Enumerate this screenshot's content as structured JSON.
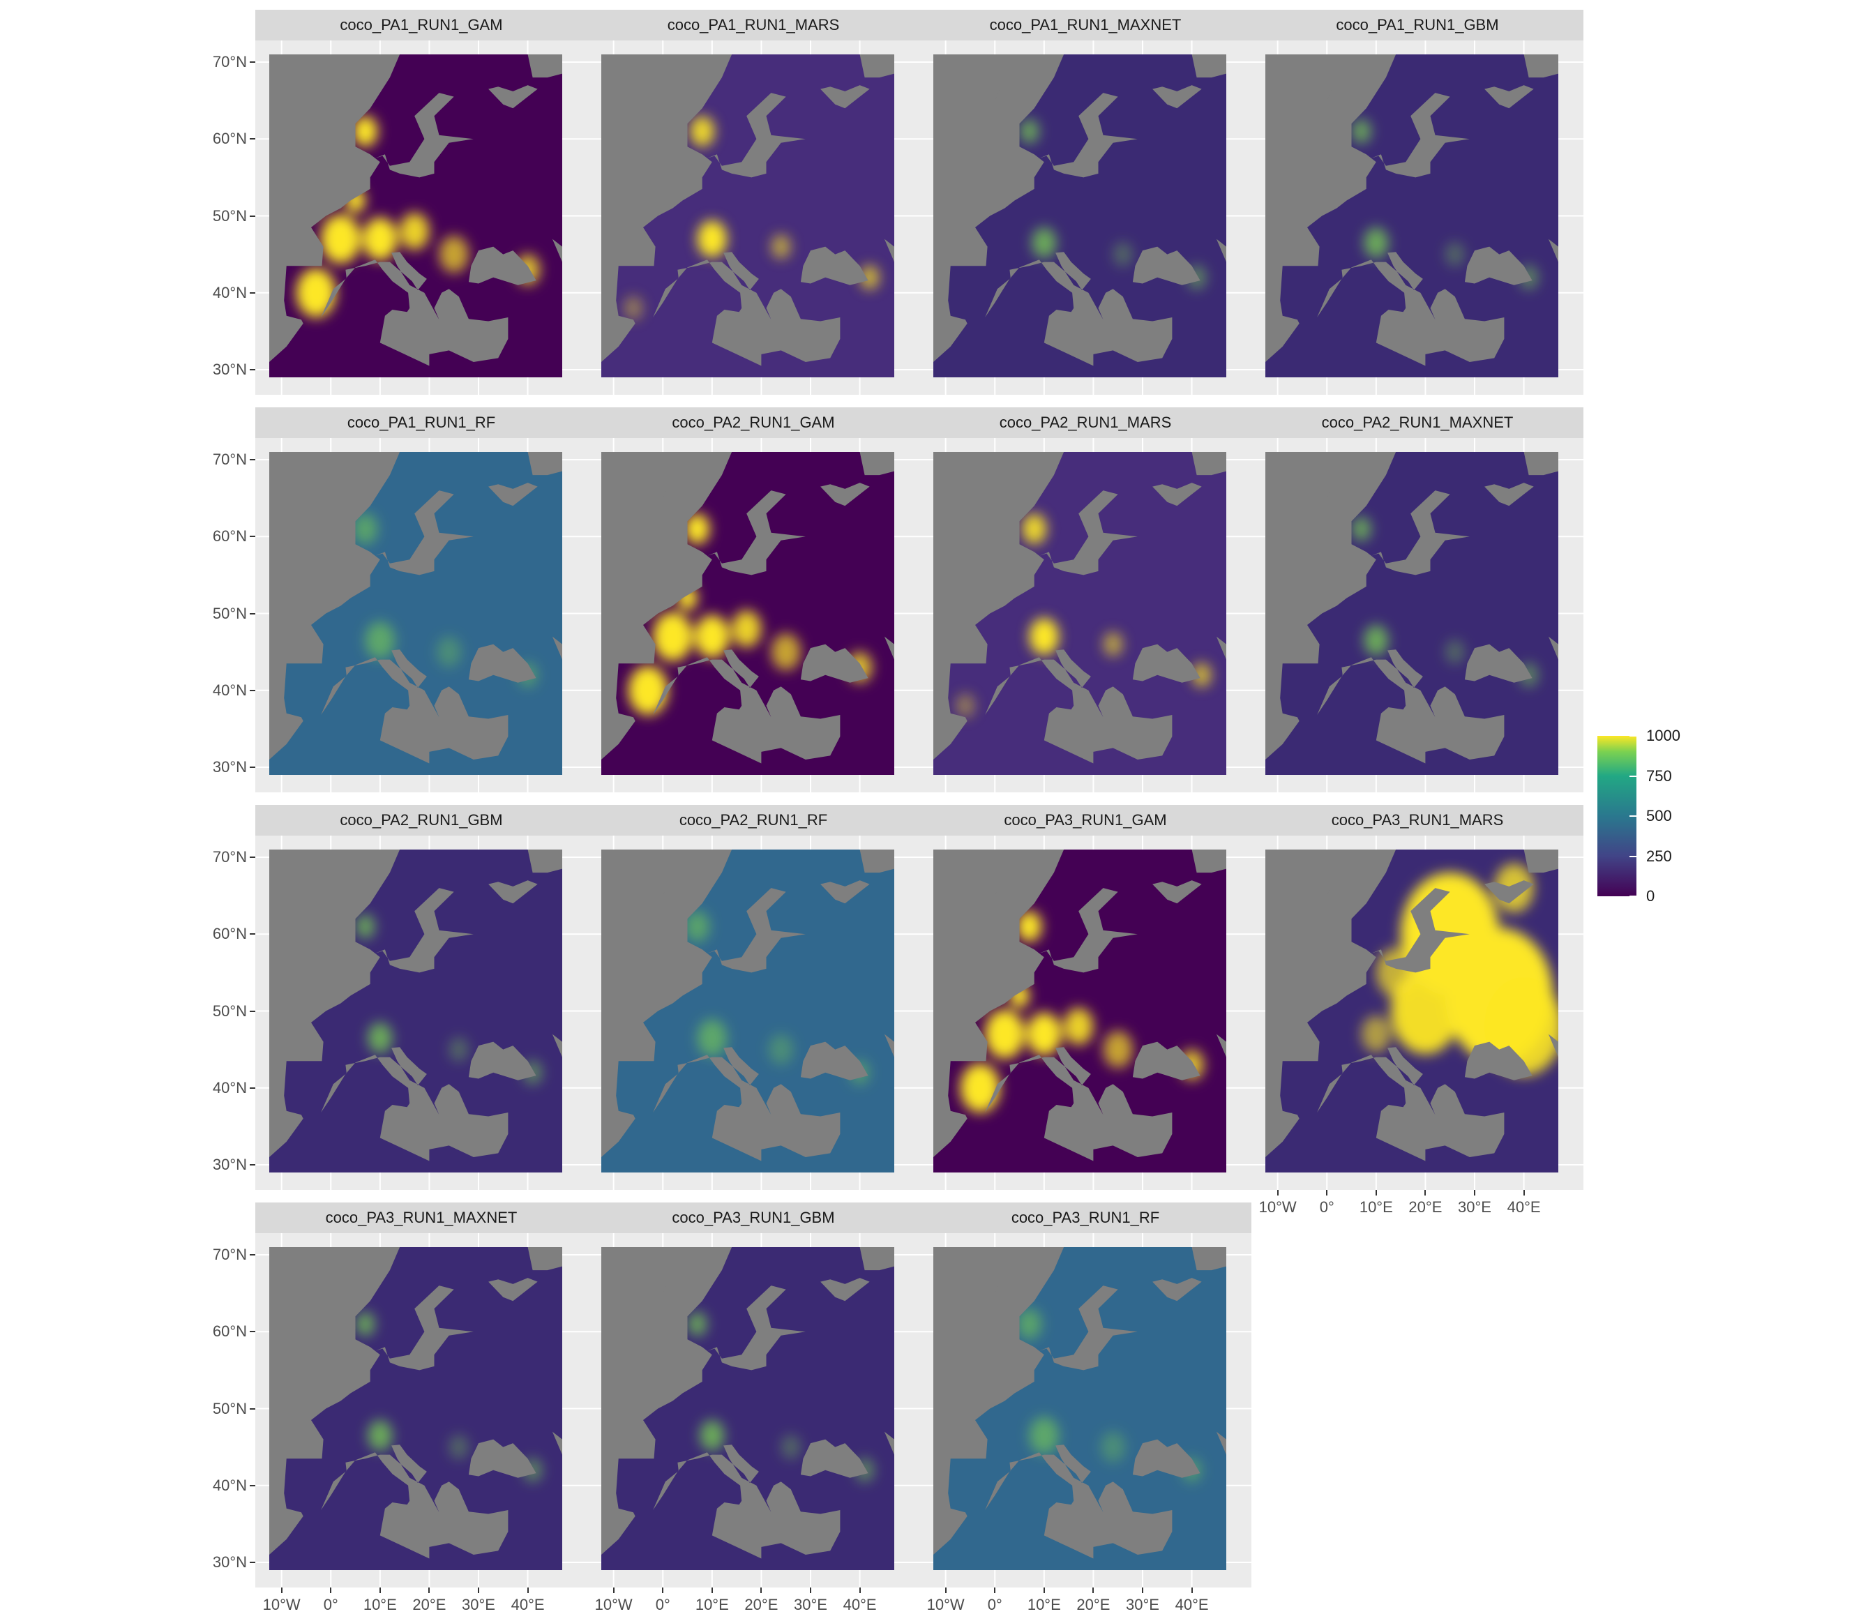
{
  "panels": [
    {
      "title": "coco_PA1_RUN1_GAM",
      "variant": "high"
    },
    {
      "title": "coco_PA1_RUN1_MARS",
      "variant": "mid"
    },
    {
      "title": "coco_PA1_RUN1_MAXNET",
      "variant": "low"
    },
    {
      "title": "coco_PA1_RUN1_GBM",
      "variant": "low"
    },
    {
      "title": "coco_PA1_RUN1_RF",
      "variant": "teal"
    },
    {
      "title": "coco_PA2_RUN1_GAM",
      "variant": "high"
    },
    {
      "title": "coco_PA2_RUN1_MARS",
      "variant": "mid"
    },
    {
      "title": "coco_PA2_RUN1_MAXNET",
      "variant": "low"
    },
    {
      "title": "coco_PA2_RUN1_GBM",
      "variant": "low"
    },
    {
      "title": "coco_PA2_RUN1_RF",
      "variant": "teal"
    },
    {
      "title": "coco_PA3_RUN1_GAM",
      "variant": "high"
    },
    {
      "title": "coco_PA3_RUN1_MARS",
      "variant": "east"
    },
    {
      "title": "coco_PA3_RUN1_MAXNET",
      "variant": "low"
    },
    {
      "title": "coco_PA3_RUN1_GBM",
      "variant": "low"
    },
    {
      "title": "coco_PA3_RUN1_RF",
      "variant": "teal"
    }
  ],
  "y_axis": {
    "ticks": [
      "70°N",
      "60°N",
      "50°N",
      "40°N",
      "30°N"
    ]
  },
  "x_axis": {
    "ticks": [
      "10°W",
      "0°",
      "10°E",
      "20°E",
      "30°E",
      "40°E"
    ]
  },
  "legend": {
    "labels": [
      "1000",
      "750",
      "500",
      "250",
      "0"
    ],
    "range": [
      0,
      1000
    ]
  },
  "colors": {
    "strip": "#d9d9d9",
    "panel_background": "#ebebeb",
    "na_fill": "#7f7f7f",
    "viridis_low": "#440154",
    "viridis_mid": "#2a788e",
    "viridis_high": "#fde725"
  }
}
